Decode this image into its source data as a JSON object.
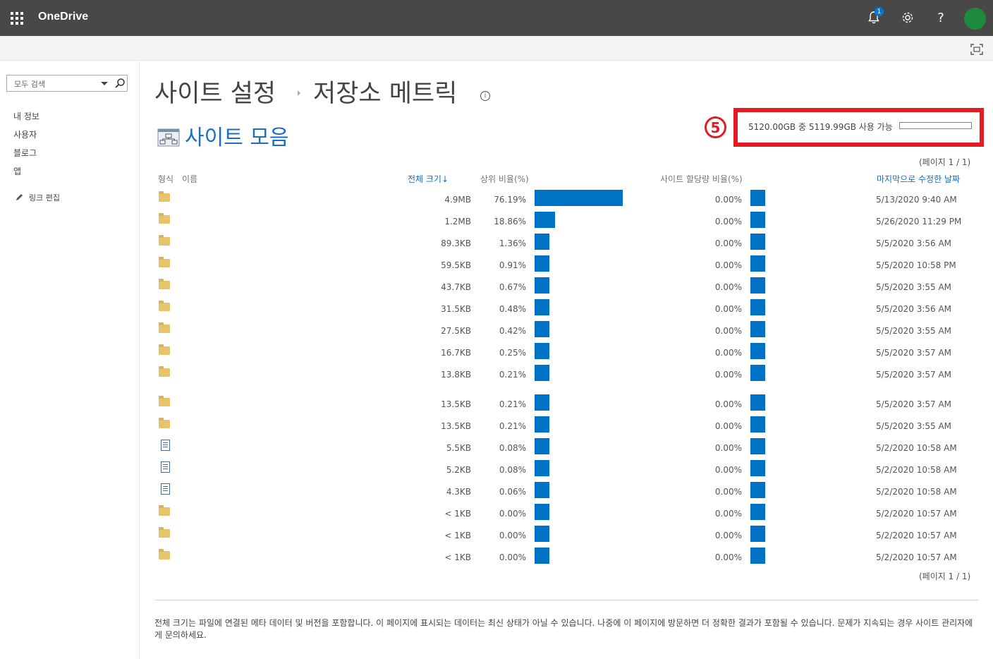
{
  "suitebar": {
    "brand": "OneDrive",
    "notification_count": "1",
    "help_glyph": "?"
  },
  "leftnav": {
    "search_placeholder": "모두 검색",
    "items": [
      {
        "label": "내 정보"
      },
      {
        "label": "사용자"
      },
      {
        "label": "블로그"
      },
      {
        "label": "앱"
      }
    ],
    "edit_links": "링크 편집"
  },
  "header": {
    "breadcrumb_parent": "사이트 설정",
    "title": "저장소 메트릭",
    "info_glyph": "i",
    "collection": "사이트 모음"
  },
  "callout": {
    "number": "5"
  },
  "quota": {
    "text": "5120.00GB 중 5119.99GB 사용 가능",
    "used_fraction": 0.0
  },
  "pager": {
    "top": "(페이지 1 / 1)",
    "bottom": "(페이지 1 / 1)"
  },
  "table": {
    "headers": {
      "type": "형식",
      "name": "이름",
      "total_size": "전체 크기↓",
      "parent_pct": "상위 비율(%)",
      "quota_pct": "사이트 할당량 비율(%)",
      "modified": "마지막으로 수정한 날짜"
    },
    "rows": [
      {
        "icon": "folder-icon",
        "size": "4.9MB",
        "pct": "76.19%",
        "pct_value": 76.19,
        "quota": "0.00%",
        "date": "5/13/2020 9:40 AM"
      },
      {
        "icon": "folder-icon",
        "size": "1.2MB",
        "pct": "18.86%",
        "pct_value": 18.86,
        "quota": "0.00%",
        "date": "5/26/2020 11:29 PM"
      },
      {
        "icon": "folder-icon",
        "size": "89.3KB",
        "pct": "1.36%",
        "pct_value": 1.36,
        "quota": "0.00%",
        "date": "5/5/2020 3:56 AM"
      },
      {
        "icon": "folder-icon",
        "size": "59.5KB",
        "pct": "0.91%",
        "pct_value": 0.91,
        "quota": "0.00%",
        "date": "5/5/2020 10:58 PM"
      },
      {
        "icon": "folder-icon",
        "size": "43.7KB",
        "pct": "0.67%",
        "pct_value": 0.67,
        "quota": "0.00%",
        "date": "5/5/2020 3:55 AM"
      },
      {
        "icon": "folder-icon",
        "size": "31.5KB",
        "pct": "0.48%",
        "pct_value": 0.48,
        "quota": "0.00%",
        "date": "5/5/2020 3:56 AM"
      },
      {
        "icon": "folder-icon",
        "size": "27.5KB",
        "pct": "0.42%",
        "pct_value": 0.42,
        "quota": "0.00%",
        "date": "5/5/2020 3:55 AM"
      },
      {
        "icon": "folder-icon",
        "size": "16.7KB",
        "pct": "0.25%",
        "pct_value": 0.25,
        "quota": "0.00%",
        "date": "5/5/2020 3:57 AM"
      },
      {
        "icon": "folder-icon",
        "size": "13.8KB",
        "pct": "0.21%",
        "pct_value": 0.21,
        "quota": "0.00%",
        "date": "5/5/2020 3:57 AM"
      },
      {
        "icon": "folder-icon",
        "size": "13.5KB",
        "pct": "0.21%",
        "pct_value": 0.21,
        "quota": "0.00%",
        "date": "5/5/2020 3:57 AM"
      },
      {
        "icon": "folder-icon",
        "size": "13.5KB",
        "pct": "0.21%",
        "pct_value": 0.21,
        "quota": "0.00%",
        "date": "5/5/2020 3:55 AM"
      },
      {
        "icon": "list-file-icon",
        "size": "5.5KB",
        "pct": "0.08%",
        "pct_value": 0.08,
        "quota": "0.00%",
        "date": "5/2/2020 10:58 AM"
      },
      {
        "icon": "list-file-icon",
        "size": "5.2KB",
        "pct": "0.08%",
        "pct_value": 0.08,
        "quota": "0.00%",
        "date": "5/2/2020 10:58 AM"
      },
      {
        "icon": "list-file-icon",
        "size": "4.3KB",
        "pct": "0.06%",
        "pct_value": 0.06,
        "quota": "0.00%",
        "date": "5/2/2020 10:58 AM"
      },
      {
        "icon": "folder-icon",
        "size": "< 1KB",
        "pct": "0.00%",
        "pct_value": 0.0,
        "quota": "0.00%",
        "date": "5/2/2020 10:57 AM"
      },
      {
        "icon": "folder-icon",
        "size": "< 1KB",
        "pct": "0.00%",
        "pct_value": 0.0,
        "quota": "0.00%",
        "date": "5/2/2020 10:57 AM"
      },
      {
        "icon": "folder-icon",
        "size": "< 1KB",
        "pct": "0.00%",
        "pct_value": 0.0,
        "quota": "0.00%",
        "date": "5/2/2020 10:57 AM"
      }
    ]
  },
  "footnote": "전체 크기는 파일에 연결된 메타 데이터 및 버전을 포함합니다. 이 페이지에 표시되는 데이터는 최신 상태가 아닐 수 있습니다. 나중에 이 페이지에 방문하면 더 정확한 결과가 포함될 수 있습니다. 문제가 지속되는 경우 사이트 관리자에게 문의하세요.",
  "colors": {
    "suitebar": "#484848",
    "accent": "#0072c6",
    "link": "#1b6ec2",
    "callout": "#e51b24",
    "avatar": "#1e8a3c"
  }
}
